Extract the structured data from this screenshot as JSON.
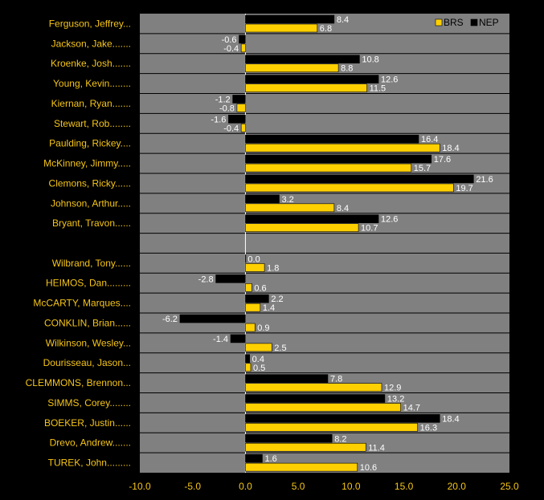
{
  "chart_data": {
    "type": "bar",
    "orientation": "horizontal",
    "title": "",
    "xlabel": "",
    "ylabel": "",
    "xlim": [
      -10,
      25
    ],
    "xticks": [
      "-10.0",
      "-5.0",
      "0.0",
      "5.0",
      "10.0",
      "15.0",
      "20.0",
      "25.0"
    ],
    "grid": true,
    "legend_position": "top-right",
    "colors": {
      "plot_bg": "#808080",
      "page_bg": "#000000",
      "text": "#f5c518",
      "BRS": "#ffd000",
      "NEP": "#000000"
    },
    "categories": [
      "Ferguson, Jeffrey...",
      "Jackson, Jake.......",
      "Kroenke, Josh.......",
      "Young, Kevin........",
      "Kiernan, Ryan.......",
      "Stewart, Rob........",
      "Paulding, Rickey....",
      "McKinney, Jimmy.....",
      "Clemons, Ricky......",
      "Johnson, Arthur.....",
      "Bryant, Travon......",
      "",
      "Wilbrand, Tony......",
      "HEIMOS, Dan.........",
      "McCARTY, Marques....",
      "CONKLIN, Brian......",
      "Wilkinson, Wesley...",
      "Dourisseau, Jason...",
      "CLEMMONS, Brennon...",
      "SIMMS, Corey........",
      "BOEKER, Justin......",
      "Drevo, Andrew.......",
      "TUREK, John........."
    ],
    "series": [
      {
        "name": "NEP",
        "values": [
          8.4,
          -0.6,
          10.8,
          12.6,
          -1.2,
          -1.6,
          16.4,
          17.6,
          21.6,
          3.2,
          12.6,
          null,
          0.0,
          -2.8,
          2.2,
          -6.2,
          -1.4,
          0.4,
          7.8,
          13.2,
          18.4,
          8.2,
          1.6
        ],
        "labels": [
          "8.4",
          "-0.6",
          "10.8",
          "12.6",
          "-1.2",
          "-1.6",
          "16.4",
          "17.6",
          "21.6",
          "3.2",
          "12.6",
          "",
          "0.0",
          "-2.8",
          "2.2",
          "-6.2",
          "-1.4",
          "0.4",
          "7.8",
          "13.2",
          "18.4",
          "8.2",
          "1.6"
        ]
      },
      {
        "name": "BRS",
        "values": [
          6.8,
          -0.4,
          8.8,
          11.5,
          -0.8,
          -0.4,
          18.4,
          15.7,
          19.7,
          8.4,
          10.7,
          null,
          1.8,
          0.6,
          1.4,
          0.9,
          2.5,
          0.5,
          12.9,
          14.7,
          16.3,
          11.4,
          10.6
        ],
        "labels": [
          "6.8",
          "-0.4",
          "8.8",
          "11.5",
          "-0.8",
          "-0.4",
          "18.4",
          "15.7",
          "19.7",
          "8.4",
          "10.7",
          "",
          "1.8",
          "0.6",
          "1.4",
          "0.9",
          "2.5",
          "0.5",
          "12.9",
          "14.7",
          "16.3",
          "11.4",
          "10.6"
        ]
      }
    ],
    "legend": [
      {
        "name": "BRS"
      },
      {
        "name": "NEP"
      }
    ]
  }
}
